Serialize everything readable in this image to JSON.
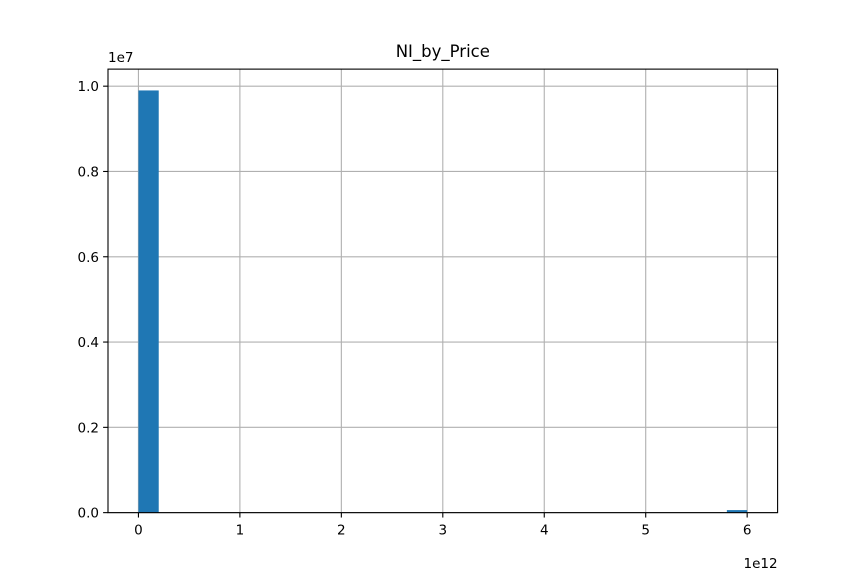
{
  "chart_data": {
    "type": "bar",
    "title": "NI_by_Price",
    "xlabel": "",
    "ylabel": "",
    "x_offset_text": "1e12",
    "y_offset_text": "1e7",
    "xlim": [
      -0.3,
      6.3
    ],
    "ylim": [
      0,
      1.04
    ],
    "x_ticks": [
      0,
      1,
      2,
      3,
      4,
      5,
      6
    ],
    "x_tick_labels": [
      "0",
      "1",
      "2",
      "3",
      "4",
      "5",
      "6"
    ],
    "y_ticks": [
      0.0,
      0.2,
      0.4,
      0.6,
      0.8,
      1.0
    ],
    "y_tick_labels": [
      "0.0",
      "0.2",
      "0.4",
      "0.6",
      "0.8",
      "1.0"
    ],
    "grid": true,
    "bar_color": "#1f77b4",
    "bins": [
      {
        "x0": 0.0,
        "x1": 0.2,
        "value": 0.99
      },
      {
        "x0": 5.8,
        "x1": 6.0,
        "value": 0.006
      }
    ]
  }
}
